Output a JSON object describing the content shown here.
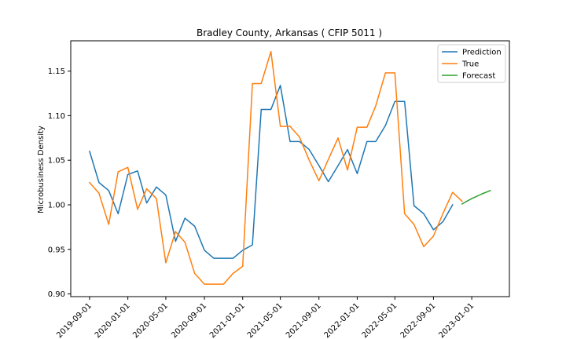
{
  "chart_data": {
    "type": "line",
    "title": "Bradley County, Arkansas ( CFIP 5011 )",
    "xlabel": "",
    "ylabel": "Microbusiness Density",
    "x_ticks": [
      "2019-09-01",
      "2020-01-01",
      "2020-05-01",
      "2020-09-01",
      "2021-01-01",
      "2021-05-01",
      "2021-09-01",
      "2022-01-01",
      "2022-05-01",
      "2022-09-01",
      "2023-01-01"
    ],
    "y_ticks": [
      0.9,
      0.95,
      1.0,
      1.05,
      1.1,
      1.15
    ],
    "ylim": [
      0.897,
      1.184
    ],
    "xlim": [
      "2019-07-03",
      "2023-05-01"
    ],
    "grid": false,
    "legend_position": "top-right",
    "series": [
      {
        "name": "Prediction",
        "color": "#1f77b4",
        "x": [
          "2019-09-01",
          "2019-10-01",
          "2019-11-01",
          "2019-12-01",
          "2020-01-01",
          "2020-02-01",
          "2020-03-01",
          "2020-04-01",
          "2020-05-01",
          "2020-06-01",
          "2020-07-01",
          "2020-08-01",
          "2020-09-01",
          "2020-10-01",
          "2020-11-01",
          "2020-12-01",
          "2021-01-01",
          "2021-02-01",
          "2021-03-01",
          "2021-04-01",
          "2021-05-01",
          "2021-06-01",
          "2021-07-01",
          "2021-08-01",
          "2021-09-01",
          "2021-10-01",
          "2021-11-01",
          "2021-12-01",
          "2022-01-01",
          "2022-02-01",
          "2022-03-01",
          "2022-04-01",
          "2022-05-01",
          "2022-06-01",
          "2022-07-01",
          "2022-08-01",
          "2022-09-01",
          "2022-10-01",
          "2022-11-01"
        ],
        "values": [
          1.06,
          1.025,
          1.016,
          0.99,
          1.034,
          1.038,
          1.002,
          1.02,
          1.011,
          0.959,
          0.985,
          0.976,
          0.949,
          0.94,
          0.94,
          0.94,
          0.949,
          0.955,
          1.107,
          1.107,
          1.134,
          1.071,
          1.071,
          1.062,
          1.044,
          1.026,
          1.044,
          1.062,
          1.035,
          1.071,
          1.071,
          1.089,
          1.116,
          1.116,
          0.999,
          0.99,
          0.972,
          0.981,
          1.0
        ]
      },
      {
        "name": "True",
        "color": "#ff7f0e",
        "x": [
          "2019-09-01",
          "2019-10-01",
          "2019-11-01",
          "2019-12-01",
          "2020-01-01",
          "2020-02-01",
          "2020-03-01",
          "2020-04-01",
          "2020-05-01",
          "2020-06-01",
          "2020-07-01",
          "2020-08-01",
          "2020-09-01",
          "2020-10-01",
          "2020-11-01",
          "2020-12-01",
          "2021-01-01",
          "2021-02-01",
          "2021-03-01",
          "2021-04-01",
          "2021-05-01",
          "2021-06-01",
          "2021-07-01",
          "2021-08-01",
          "2021-09-01",
          "2021-10-01",
          "2021-11-01",
          "2021-12-01",
          "2022-01-01",
          "2022-02-01",
          "2022-03-01",
          "2022-04-01",
          "2022-05-01",
          "2022-06-01",
          "2022-07-01",
          "2022-08-01",
          "2022-09-01",
          "2022-10-01",
          "2022-11-01",
          "2022-12-01"
        ],
        "values": [
          1.025,
          1.013,
          0.978,
          1.037,
          1.042,
          0.995,
          1.018,
          1.007,
          0.935,
          0.97,
          0.958,
          0.923,
          0.911,
          0.911,
          0.911,
          0.923,
          0.931,
          1.136,
          1.136,
          1.172,
          1.088,
          1.088,
          1.076,
          1.05,
          1.027,
          1.051,
          1.075,
          1.039,
          1.087,
          1.087,
          1.111,
          1.148,
          1.148,
          0.99,
          0.978,
          0.953,
          0.965,
          0.99,
          1.014,
          1.004
        ]
      },
      {
        "name": "Forecast",
        "color": "#2ca02c",
        "x": [
          "2022-12-01",
          "2023-01-01",
          "2023-02-01",
          "2023-03-01"
        ],
        "values": [
          1.001,
          1.007,
          1.012,
          1.016
        ]
      }
    ]
  }
}
